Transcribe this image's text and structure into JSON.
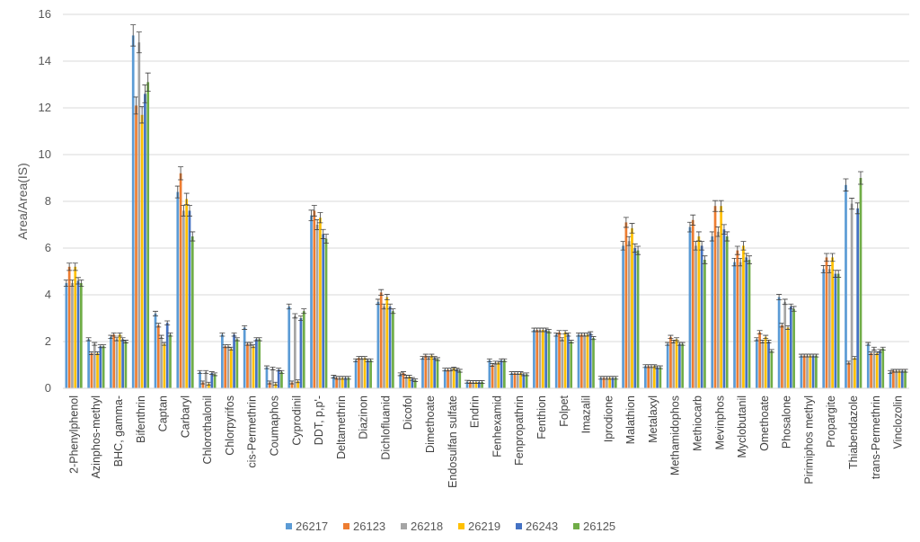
{
  "chart_data": {
    "type": "bar",
    "title": "",
    "xlabel": "",
    "ylabel": "Area/Area(IS)",
    "ylim": [
      0,
      16
    ],
    "yticks": [
      0,
      2,
      4,
      6,
      8,
      10,
      12,
      14,
      16
    ],
    "grid": true,
    "legend_position": "bottom",
    "error_bars": true,
    "categories": [
      "2-Phenylphenol",
      "Azinphos-methyl",
      "BHC, gamma-",
      "Bifenthrin",
      "Captan",
      "Carbaryl",
      "Chlorothalonil",
      "Chlorpyrifos",
      "cis-Permethrin",
      "Coumaphos",
      "Cyprodinil",
      "DDT, p,p'-",
      "Deltamethrin",
      "Diazinon",
      "Dichlofluanid",
      "Dicofol",
      "Dimethoate",
      "Endosulfan sulfate",
      "Endrin",
      "Fenhexamid",
      "Fenpropathrin",
      "Fenthion",
      "Folpet",
      "Imazalil",
      "Iprodione",
      "Malathion",
      "Metalaxyl",
      "Methamidophos",
      "Methiocarb",
      "Mevinphos",
      "Myclobutanil",
      "Omethoate",
      "Phosalone",
      "Pirimiphos methyl",
      "Propargite",
      "Thiabendazole",
      "trans-Permethrin",
      "Vinclozolin"
    ],
    "series": [
      {
        "name": "26217",
        "color": "#5B9BD5",
        "values": [
          4.5,
          2.1,
          2.2,
          15.1,
          3.2,
          8.4,
          0.7,
          2.3,
          2.6,
          0.9,
          3.5,
          7.4,
          0.5,
          1.2,
          3.7,
          0.6,
          1.3,
          0.8,
          0.28,
          1.2,
          0.65,
          2.5,
          2.3,
          2.3,
          0.45,
          6.1,
          0.95,
          1.9,
          6.9,
          6.5,
          5.4,
          2.1,
          3.9,
          1.4,
          5.1,
          8.7,
          1.9,
          0.7
        ]
      },
      {
        "name": "26123",
        "color": "#ED7D31",
        "values": [
          5.2,
          1.5,
          2.3,
          12.1,
          2.7,
          9.2,
          0.25,
          1.8,
          1.9,
          0.25,
          0.25,
          7.6,
          0.45,
          1.3,
          4.1,
          0.65,
          1.4,
          0.8,
          0.27,
          1.0,
          0.65,
          2.5,
          2.4,
          2.3,
          0.45,
          7.1,
          0.95,
          2.2,
          7.2,
          7.8,
          5.9,
          2.4,
          2.7,
          1.4,
          5.6,
          1.1,
          1.5,
          0.75
        ]
      },
      {
        "name": "26218",
        "color": "#A5A5A5",
        "values": [
          4.5,
          1.9,
          2.1,
          14.8,
          2.2,
          7.6,
          0.7,
          1.8,
          1.9,
          0.85,
          3.1,
          7.0,
          0.45,
          1.3,
          3.5,
          0.5,
          1.3,
          0.8,
          0.27,
          1.1,
          0.65,
          2.5,
          2.1,
          2.3,
          0.45,
          6.3,
          0.95,
          2.0,
          6.1,
          6.7,
          5.4,
          2.0,
          3.7,
          1.4,
          5.1,
          7.9,
          1.7,
          0.75
        ]
      },
      {
        "name": "26219",
        "color": "#FFC000",
        "values": [
          5.2,
          1.5,
          2.3,
          11.7,
          1.9,
          8.1,
          0.2,
          1.7,
          1.8,
          0.2,
          0.3,
          7.3,
          0.45,
          1.3,
          3.9,
          0.5,
          1.4,
          0.85,
          0.27,
          1.1,
          0.65,
          2.5,
          2.4,
          2.3,
          0.45,
          6.85,
          0.95,
          2.1,
          6.5,
          7.8,
          6.1,
          2.2,
          2.6,
          1.4,
          5.6,
          1.3,
          1.5,
          0.75
        ]
      },
      {
        "name": "26243",
        "color": "#4472C4",
        "values": [
          4.6,
          1.8,
          2.1,
          12.6,
          2.8,
          7.6,
          0.65,
          2.3,
          2.1,
          0.8,
          3.0,
          6.6,
          0.45,
          1.2,
          3.5,
          0.4,
          1.3,
          0.8,
          0.27,
          1.2,
          0.6,
          2.5,
          2.3,
          2.35,
          0.45,
          6.0,
          0.9,
          1.9,
          6.1,
          6.8,
          5.6,
          2.0,
          3.5,
          1.4,
          4.9,
          7.7,
          1.6,
          0.75
        ]
      },
      {
        "name": "26125",
        "color": "#70AD47",
        "values": [
          4.5,
          1.8,
          2.0,
          13.1,
          2.3,
          6.5,
          0.6,
          2.1,
          2.1,
          0.7,
          3.3,
          6.4,
          0.45,
          1.2,
          3.3,
          0.35,
          1.25,
          0.75,
          0.27,
          1.2,
          0.6,
          2.45,
          2.0,
          2.15,
          0.45,
          5.9,
          0.9,
          1.9,
          5.5,
          6.5,
          5.5,
          1.6,
          3.4,
          1.4,
          4.9,
          9.0,
          1.7,
          0.75
        ]
      }
    ]
  }
}
